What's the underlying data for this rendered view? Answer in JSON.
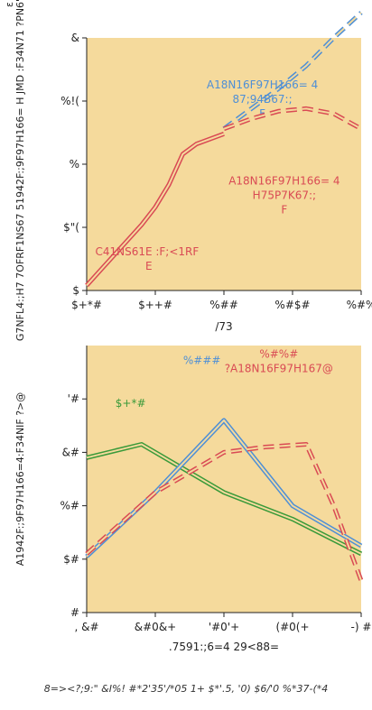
{
  "corner_mark": "ε",
  "caption": "8=><?;9:\" &I%! #*2'35'/*05 1+ $*'.5, '0) $6/'0 %*37-(*4",
  "colors": {
    "panel_bg": "#f5da9c",
    "red": "#d94a54",
    "blue": "#4e8fd6",
    "green": "#3a9a3a",
    "axis": "#222222"
  },
  "chart_data": [
    {
      "type": "line",
      "ylabel": "G7NFL4:;H7 7OFRF1NS67 51942F:;9F97H166= H JMD :F34N71 ?PN6\"@",
      "xlabel": "/73",
      "ylim": [
        0,
        1
      ],
      "xlim": [
        0,
        1
      ],
      "yticks": [
        {
          "v": 0.0,
          "label": "$"
        },
        {
          "v": 0.25,
          "label": "$\"("
        },
        {
          "v": 0.5,
          "label": "%"
        },
        {
          "v": 0.75,
          "label": "%!("
        },
        {
          "v": 1.0,
          "label": "&"
        }
      ],
      "xticks": [
        {
          "v": 0.0,
          "label": "$+*#"
        },
        {
          "v": 0.25,
          "label": "$++#"
        },
        {
          "v": 0.5,
          "label": "%##"
        },
        {
          "v": 0.75,
          "label": "%#$#"
        },
        {
          "v": 1.0,
          "label": "%#%"
        }
      ],
      "series": [
        {
          "name": "C41NS61E :F;<1RF   E",
          "color_key": "red",
          "style": "double",
          "label_at": [
            0.22,
            0.14
          ],
          "x": [
            0.0,
            0.05,
            0.1,
            0.15,
            0.2,
            0.25,
            0.3,
            0.35,
            0.4,
            0.45,
            0.5
          ],
          "y": [
            0.02,
            0.08,
            0.14,
            0.2,
            0.26,
            0.33,
            0.42,
            0.54,
            0.58,
            0.6,
            0.62
          ]
        },
        {
          "name": "A18N16F97H166= 4  87;94B67:;    F",
          "color_key": "blue",
          "style": "dashed",
          "label_at": [
            0.64,
            0.8
          ],
          "x": [
            0.5,
            0.6,
            0.7,
            0.8,
            0.9,
            1.0
          ],
          "y": [
            0.64,
            0.72,
            0.8,
            0.89,
            1.0,
            1.1
          ]
        },
        {
          "name": "A18N16F97H166= 4  H75P7K67:;    F",
          "color_key": "red",
          "style": "dashed",
          "label_at": [
            0.72,
            0.42
          ],
          "x": [
            0.5,
            0.6,
            0.7,
            0.8,
            0.9,
            1.0
          ],
          "y": [
            0.64,
            0.68,
            0.71,
            0.72,
            0.7,
            0.64
          ]
        }
      ]
    },
    {
      "type": "line",
      "ylabel": "A1942F:;9F97H166=4:F34NIF ?>@",
      "xlabel": ".7591:;6=4 29<88=",
      "ylim": [
        0,
        1
      ],
      "xlim": [
        0,
        1
      ],
      "yticks": [
        {
          "v": 0.0,
          "label": "#"
        },
        {
          "v": 0.2,
          "label": "$#"
        },
        {
          "v": 0.4,
          "label": "%#"
        },
        {
          "v": 0.6,
          "label": "&#"
        },
        {
          "v": 0.8,
          "label": "'#"
        }
      ],
      "xticks": [
        {
          "v": 0.0,
          "label": ", &#"
        },
        {
          "v": 0.25,
          "label": "&#0&+"
        },
        {
          "v": 0.5,
          "label": "'#0'+"
        },
        {
          "v": 0.75,
          "label": "(#0(+"
        },
        {
          "v": 1.0,
          "label": "-) #"
        }
      ],
      "series": [
        {
          "name": "$+*#",
          "color_key": "green",
          "style": "double",
          "label_at": [
            0.16,
            0.77
          ],
          "x": [
            0.0,
            0.2,
            0.25,
            0.5,
            0.75,
            1.0
          ],
          "y": [
            0.58,
            0.63,
            0.6,
            0.45,
            0.35,
            0.22
          ]
        },
        {
          "name": "%###",
          "color_key": "blue",
          "style": "double",
          "label_at": [
            0.42,
            0.93
          ],
          "x": [
            0.0,
            0.25,
            0.5,
            0.75,
            1.0
          ],
          "y": [
            0.21,
            0.45,
            0.72,
            0.4,
            0.25
          ]
        },
        {
          "name": "?A18N16F97H167@",
          "color_key": "red",
          "style": "dashed",
          "label_at": [
            0.7,
            0.9
          ],
          "label_top": "%#%#",
          "x": [
            0.0,
            0.25,
            0.5,
            0.65,
            0.8,
            0.9,
            1.0
          ],
          "y": [
            0.22,
            0.45,
            0.6,
            0.62,
            0.63,
            0.4,
            0.12
          ]
        }
      ]
    }
  ]
}
